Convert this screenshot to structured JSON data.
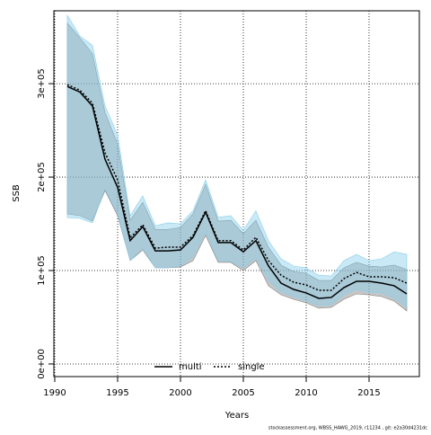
{
  "chart_data": {
    "type": "line",
    "xlabel": "Years",
    "ylabel": "SSB",
    "footer": "stockassessment.org, WBSS_HAWG_2019, r11234 , git: e2a30d4231dc",
    "x": [
      1991,
      1992,
      1993,
      1994,
      1995,
      1996,
      1997,
      1998,
      1999,
      2000,
      2001,
      2002,
      2003,
      2004,
      2005,
      2006,
      2007,
      2008,
      2009,
      2010,
      2011,
      2012,
      2013,
      2014,
      2015,
      2016,
      2017,
      2018
    ],
    "series": [
      {
        "name": "multi",
        "color": "#000000",
        "dash": "solid",
        "band_color": "#808080",
        "values": [
          297000,
          291000,
          276000,
          219000,
          189000,
          132000,
          147000,
          121000,
          121000,
          122000,
          135600,
          162500,
          130000,
          130000,
          120000,
          132000,
          105000,
          86500,
          79800,
          76000,
          70200,
          71200,
          81700,
          88500,
          88500,
          86500,
          83700,
          75000
        ],
        "upper": [
          365000,
          349000,
          332000,
          269000,
          235600,
          153800,
          173000,
          144000,
          144000,
          146000,
          160600,
          192300,
          152900,
          153800,
          139400,
          153800,
          125000,
          105800,
          99000,
          97100,
          89400,
          89400,
          102900,
          108700,
          104800,
          103800,
          105800,
          101000
        ],
        "lower": [
          160600,
          158700,
          152900,
          185600,
          158700,
          110600,
          122000,
          102900,
          102900,
          103800,
          110600,
          137500,
          108700,
          108700,
          100000,
          110600,
          83700,
          74000,
          69200,
          65400,
          59600,
          60600,
          69200,
          75000,
          74000,
          72100,
          67300,
          56700
        ]
      },
      {
        "name": "single",
        "color": "#000000",
        "dash": "dotted",
        "band_color": "#87ceeb",
        "values": [
          299000,
          293000,
          279000,
          226000,
          197000,
          135000,
          149000,
          124000,
          125000,
          125000,
          137500,
          164000,
          132000,
          132000,
          122000,
          135600,
          110600,
          95000,
          87500,
          84600,
          78800,
          78800,
          91300,
          98000,
          93300,
          93300,
          92300,
          86500
        ],
        "upper": [
          373000,
          351000,
          341000,
          276000,
          245000,
          158700,
          180000,
          148000,
          151000,
          150000,
          164000,
          197000,
          157000,
          158700,
          143000,
          164000,
          132000,
          112500,
          104800,
          102900,
          95000,
          94200,
          110600,
          117300,
          110600,
          112500,
          120000,
          117300
        ],
        "lower": [
          156700,
          155800,
          151000,
          187500,
          160600,
          110600,
          124000,
          102900,
          102900,
          104800,
          115400,
          141300,
          110600,
          109600,
          102900,
          113500,
          89400,
          76900,
          72100,
          67300,
          62500,
          63500,
          74000,
          79800,
          76900,
          76000,
          70200,
          60600
        ]
      }
    ],
    "xlim": [
      1989.93,
      2019.0
    ],
    "xticks": [
      1990,
      1995,
      2000,
      2005,
      2010,
      2015
    ],
    "ylim": [
      -13500,
      378000
    ],
    "yticks": [
      {
        "value": 0,
        "label": "0e+00"
      },
      {
        "value": 100000,
        "label": "1e+05"
      },
      {
        "value": 200000,
        "label": "2e+05"
      },
      {
        "value": 300000,
        "label": "3e+05"
      }
    ],
    "grid": true,
    "legend": "bottom"
  }
}
